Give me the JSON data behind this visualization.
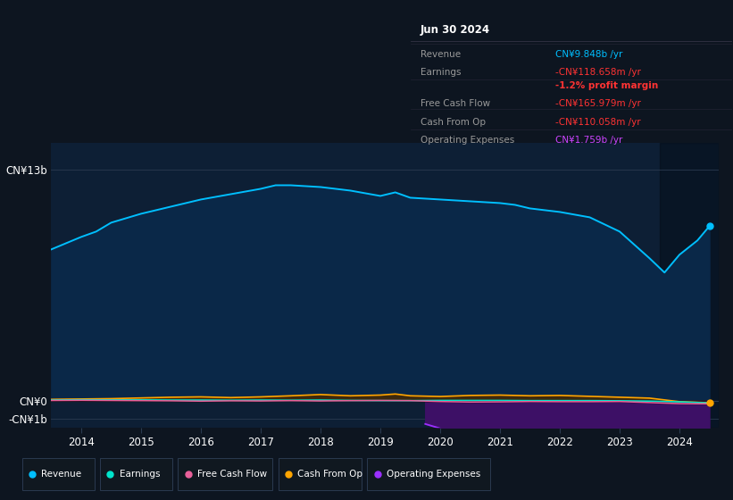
{
  "bg_color": "#0d1520",
  "plot_bg_color": "#0d1f35",
  "series": {
    "Revenue": {
      "color": "#00bfff",
      "fill_color": "#0a2a50",
      "x": [
        2013.5,
        2014.0,
        2014.25,
        2014.5,
        2015.0,
        2015.5,
        2016.0,
        2016.5,
        2017.0,
        2017.25,
        2017.5,
        2018.0,
        2018.5,
        2019.0,
        2019.25,
        2019.5,
        2020.0,
        2020.5,
        2021.0,
        2021.25,
        2021.5,
        2022.0,
        2022.5,
        2023.0,
        2023.5,
        2023.75,
        2024.0,
        2024.3,
        2024.5
      ],
      "y": [
        8.5,
        9.2,
        9.5,
        10.0,
        10.5,
        10.9,
        11.3,
        11.6,
        11.9,
        12.1,
        12.1,
        12.0,
        11.8,
        11.5,
        11.7,
        11.4,
        11.3,
        11.2,
        11.1,
        11.0,
        10.8,
        10.6,
        10.3,
        9.5,
        8.0,
        7.2,
        8.2,
        9.0,
        9.8
      ]
    },
    "Earnings": {
      "color": "#00e5cc",
      "x": [
        2013.5,
        2014.0,
        2014.5,
        2015.0,
        2015.5,
        2016.0,
        2016.5,
        2017.0,
        2017.5,
        2018.0,
        2018.5,
        2019.0,
        2019.5,
        2020.0,
        2020.5,
        2021.0,
        2021.5,
        2022.0,
        2022.5,
        2023.0,
        2023.5,
        2024.0,
        2024.5
      ],
      "y": [
        0.04,
        0.06,
        0.05,
        0.05,
        0.04,
        0.04,
        0.03,
        0.04,
        0.03,
        0.04,
        0.02,
        0.01,
        0.01,
        0.02,
        0.02,
        0.02,
        0.01,
        0.01,
        0.01,
        0.0,
        -0.02,
        -0.06,
        -0.12
      ]
    },
    "FreeCashFlow": {
      "color": "#e8609a",
      "x": [
        2013.5,
        2014.0,
        2014.5,
        2015.0,
        2015.5,
        2016.0,
        2016.5,
        2017.0,
        2017.5,
        2018.0,
        2018.5,
        2019.0,
        2019.5,
        2020.0,
        2020.5,
        2021.0,
        2021.5,
        2022.0,
        2022.5,
        2023.0,
        2023.5,
        2024.0,
        2024.5
      ],
      "y": [
        0.02,
        0.03,
        0.02,
        0.01,
        0.0,
        -0.02,
        0.0,
        -0.01,
        0.01,
        -0.01,
        0.01,
        0.02,
        0.01,
        -0.04,
        -0.07,
        -0.06,
        -0.04,
        -0.05,
        -0.05,
        -0.04,
        -0.1,
        -0.16,
        -0.17
      ]
    },
    "CashFromOp": {
      "color": "#ffa500",
      "x": [
        2013.5,
        2014.0,
        2014.5,
        2015.0,
        2015.5,
        2016.0,
        2016.5,
        2017.0,
        2017.5,
        2018.0,
        2018.5,
        2019.0,
        2019.25,
        2019.5,
        2020.0,
        2020.5,
        2021.0,
        2021.5,
        2022.0,
        2022.5,
        2023.0,
        2023.5,
        2024.0,
        2024.5
      ],
      "y": [
        0.08,
        0.1,
        0.12,
        0.16,
        0.2,
        0.22,
        0.18,
        0.22,
        0.28,
        0.35,
        0.28,
        0.32,
        0.38,
        0.28,
        0.24,
        0.3,
        0.32,
        0.28,
        0.3,
        0.25,
        0.2,
        0.15,
        -0.05,
        -0.11
      ]
    },
    "OperatingExpenses": {
      "color": "#9b30ff",
      "fill_color": "#3d1066",
      "x": [
        2019.75,
        2020.0,
        2020.25,
        2020.5,
        2021.0,
        2021.25,
        2021.5,
        2022.0,
        2022.5,
        2023.0,
        2023.5,
        2024.0,
        2024.5
      ],
      "y": [
        -1.3,
        -1.55,
        -1.62,
        -1.65,
        -1.72,
        -1.75,
        -1.73,
        -1.7,
        -1.68,
        -1.65,
        -1.62,
        -1.7,
        -1.76
      ]
    }
  },
  "ylim": [
    -1.5,
    14.5
  ],
  "xlim": [
    2013.5,
    2024.65
  ],
  "y_ticks": [
    13.0,
    0.0,
    -1.0
  ],
  "y_ticklabels": [
    "CN¥13b",
    "CN¥0",
    "-CN¥1b"
  ],
  "x_ticks": [
    2014,
    2015,
    2016,
    2017,
    2018,
    2019,
    2020,
    2021,
    2022,
    2023,
    2024
  ],
  "legend_items": [
    {
      "label": "Revenue",
      "color": "#00bfff"
    },
    {
      "label": "Earnings",
      "color": "#00e5cc"
    },
    {
      "label": "Free Cash Flow",
      "color": "#e8609a"
    },
    {
      "label": "Cash From Op",
      "color": "#ffa500"
    },
    {
      "label": "Operating Expenses",
      "color": "#9b30ff"
    }
  ],
  "tooltip": {
    "date": "Jun 30 2024",
    "rows": [
      {
        "label": "Revenue",
        "value": "CN¥9.848b /yr",
        "lcolor": "#888888",
        "vcolor": "#00bfff"
      },
      {
        "label": "Earnings",
        "value": "-CN¥118.658m /yr",
        "lcolor": "#888888",
        "vcolor": "#ff3333"
      },
      {
        "label": "",
        "value": "-1.2% profit margin",
        "lcolor": "#888888",
        "vcolor": "#ff3333"
      },
      {
        "label": "Free Cash Flow",
        "value": "-CN¥165.979m /yr",
        "lcolor": "#888888",
        "vcolor": "#ff3333"
      },
      {
        "label": "Cash From Op",
        "value": "-CN¥110.058m /yr",
        "lcolor": "#888888",
        "vcolor": "#ff3333"
      },
      {
        "label": "Operating Expenses",
        "value": "CN¥1.759b /yr",
        "lcolor": "#888888",
        "vcolor": "#cc44ff"
      }
    ]
  }
}
